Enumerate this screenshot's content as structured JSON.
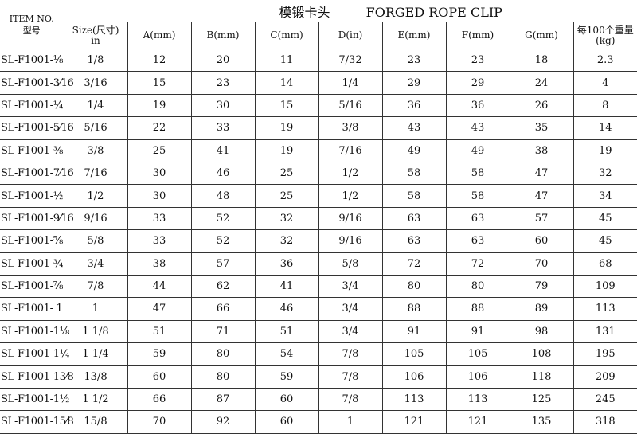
{
  "title_cn": "模锻卡头",
  "title_en": "FORGED ROPE CLIP",
  "headers": {
    "item_en": "ITEM NO.",
    "item_cn": "型号",
    "size_line1": "Size(尺寸)",
    "size_line2": "in",
    "a": "A(mm)",
    "b": "B(mm)",
    "c": "C(mm)",
    "d": "D(in)",
    "e": "E(mm)",
    "f": "F(mm)",
    "g": "G(mm)",
    "weight_line1": "每100个重量",
    "weight_line2": "(kg)"
  },
  "rows": [
    [
      "SL-F1001-⅛",
      "1/8",
      "12",
      "20",
      "11",
      "7/32",
      "23",
      "23",
      "18",
      "2.3"
    ],
    [
      "SL-F1001-3⁄16",
      "3/16",
      "15",
      "23",
      "14",
      "1/4",
      "29",
      "29",
      "24",
      "4"
    ],
    [
      "SL-F1001-¼",
      "1/4",
      "19",
      "30",
      "15",
      "5/16",
      "36",
      "36",
      "26",
      "8"
    ],
    [
      "SL-F1001-5⁄16",
      "5/16",
      "22",
      "33",
      "19",
      "3/8",
      "43",
      "43",
      "35",
      "14"
    ],
    [
      "SL-F1001-⅜",
      "3/8",
      "25",
      "41",
      "19",
      "7/16",
      "49",
      "49",
      "38",
      "19"
    ],
    [
      "SL-F1001-7⁄16",
      "7/16",
      "30",
      "46",
      "25",
      "1/2",
      "58",
      "58",
      "47",
      "32"
    ],
    [
      "SL-F1001-½",
      "1/2",
      "30",
      "48",
      "25",
      "1/2",
      "58",
      "58",
      "47",
      "34"
    ],
    [
      "SL-F1001-9⁄16",
      "9/16",
      "33",
      "52",
      "32",
      "9/16",
      "63",
      "63",
      "57",
      "45"
    ],
    [
      "SL-F1001-⅝",
      "5/8",
      "33",
      "52",
      "32",
      "9/16",
      "63",
      "63",
      "60",
      "45"
    ],
    [
      "SL-F1001-¾",
      "3/4",
      "38",
      "57",
      "36",
      "5/8",
      "72",
      "72",
      "70",
      "68"
    ],
    [
      "SL-F1001-⅞",
      "7/8",
      "44",
      "62",
      "41",
      "3/4",
      "80",
      "80",
      "79",
      "109"
    ],
    [
      "SL-F1001- 1",
      "1",
      "47",
      "66",
      "46",
      "3/4",
      "88",
      "88",
      "89",
      "113"
    ],
    [
      "SL-F1001-1⅛",
      "1 1/8",
      "51",
      "71",
      "51",
      "3/4",
      "91",
      "91",
      "98",
      "131"
    ],
    [
      "SL-F1001-1¼",
      "1 1/4",
      "59",
      "80",
      "54",
      "7/8",
      "105",
      "105",
      "108",
      "195"
    ],
    [
      "SL-F1001-13⁄8",
      "13/8",
      "60",
      "80",
      "59",
      "7/8",
      "106",
      "106",
      "118",
      "209"
    ],
    [
      "SL-F1001-1½",
      "1 1/2",
      "66",
      "87",
      "60",
      "7/8",
      "113",
      "113",
      "125",
      "245"
    ],
    [
      "SL-F1001-15⁄8",
      "15/8",
      "70",
      "92",
      "60",
      "1",
      "121",
      "121",
      "135",
      "318"
    ]
  ]
}
